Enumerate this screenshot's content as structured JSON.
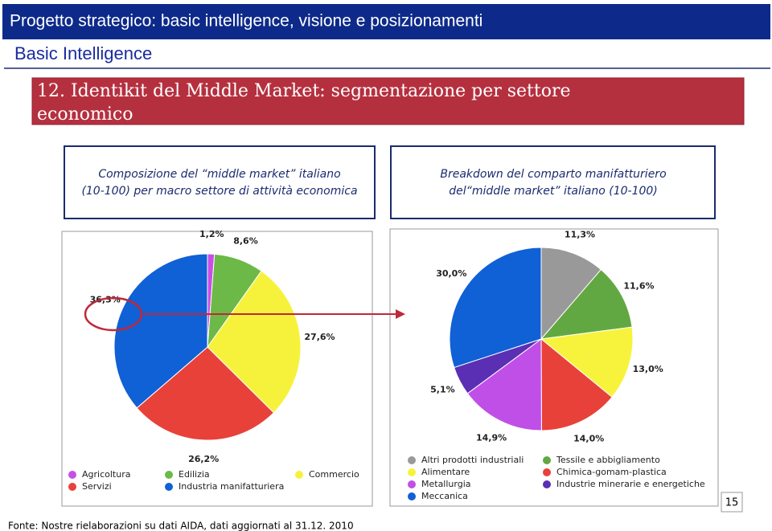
{
  "header": {
    "title": "Progetto strategico: basic intelligence, visione e posizionamenti",
    "subtitle": "Basic Intelligence",
    "section": [
      "12.  Identikit del Middle Market: segmentazione per settore",
      "economico"
    ]
  },
  "captions": [
    [
      "Composizione del “middle market” italiano",
      "(10-100) per macro settore di attività economica"
    ],
    [
      "Breakdown del comparto manifatturiero",
      "del“middle market” italiano (10-100)"
    ]
  ],
  "chart_data": [
    {
      "type": "pie",
      "categories": [
        "Agricoltura",
        "Edilizia",
        "Commercio",
        "Servizi",
        "Industria manifatturiera"
      ],
      "values": [
        1.2,
        8.6,
        27.6,
        26.2,
        36.3
      ],
      "value_labels": [
        "1,2%",
        "8,6%",
        "27,6%",
        "26,2%",
        "36,3%"
      ],
      "colors": [
        "#c84fe6",
        "#6cb947",
        "#f6f23c",
        "#e8413a",
        "#1060d6"
      ]
    },
    {
      "type": "pie",
      "categories": [
        "Altri prodotti industriali",
        "Tessile e abbigliamento",
        "Alimentare",
        "Chimica-gomam-plastica",
        "Metallurgia",
        "Industrie minerarie e energetiche",
        "Meccanica"
      ],
      "values": [
        11.3,
        11.6,
        13.0,
        14.0,
        14.9,
        5.1,
        30.0
      ],
      "value_labels": [
        "11,3%",
        "11,6%",
        "13,0%",
        "14,0%",
        "14,9%",
        "5,1%",
        "30,0%"
      ],
      "colors": [
        "#999999",
        "#62a842",
        "#f7f33c",
        "#e8413a",
        "#c04fe8",
        "#5a2fb3",
        "#1060d6"
      ]
    }
  ],
  "footer": {
    "source": "Fonte: Nostre rielaborazioni su dati AIDA, dati aggiornati al 31.12. 2010",
    "page": "15"
  }
}
